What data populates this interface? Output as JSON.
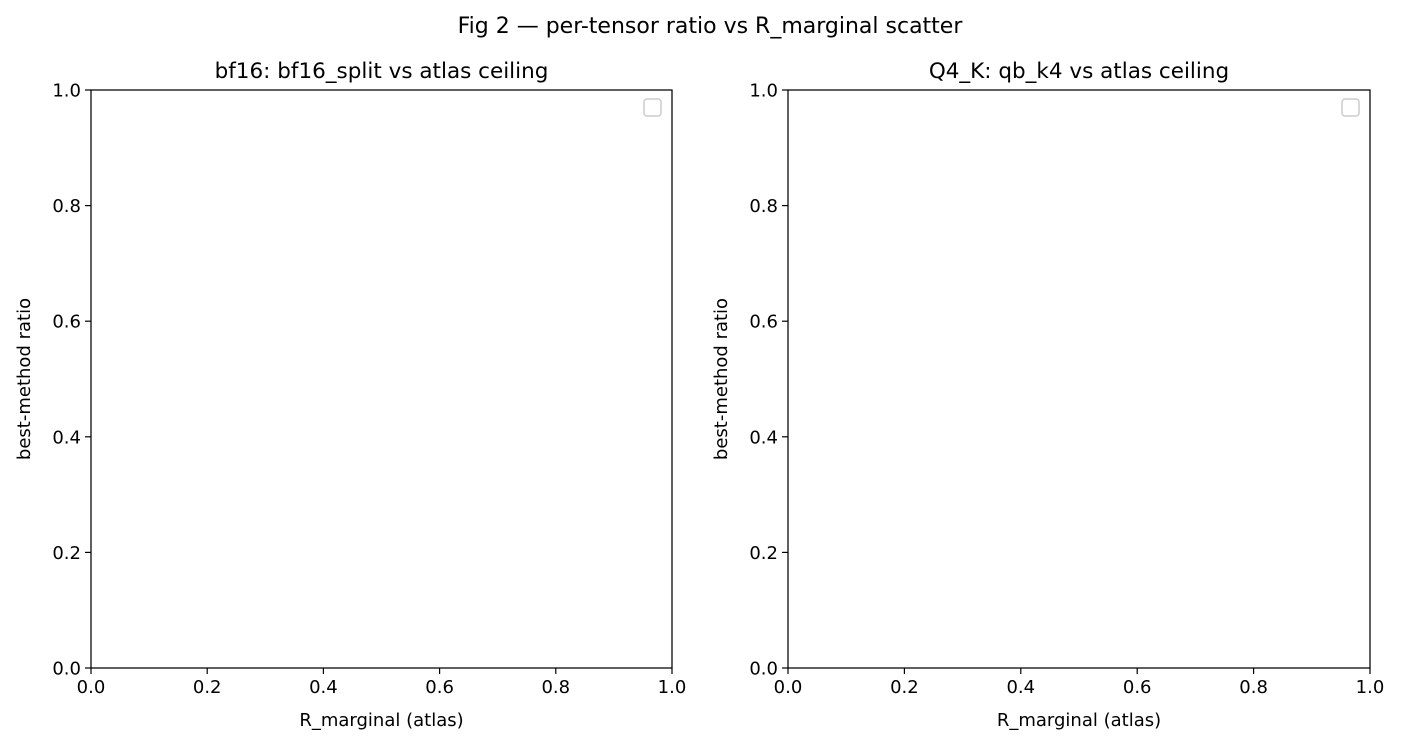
{
  "figure": {
    "suptitle": "Fig 2 — per-tensor ratio vs R_marginal scatter"
  },
  "chart_data": [
    {
      "type": "scatter",
      "title": "bf16: bf16_split vs atlas ceiling",
      "xlabel": "R_marginal (atlas)",
      "ylabel": "best-method ratio",
      "xlim": [
        0.0,
        1.0
      ],
      "ylim": [
        0.0,
        1.0
      ],
      "xticks": [
        "0.0",
        "0.2",
        "0.4",
        "0.6",
        "0.8",
        "1.0"
      ],
      "yticks": [
        "0.0",
        "0.2",
        "0.4",
        "0.6",
        "0.8",
        "1.0"
      ],
      "grid": false,
      "legend": {
        "placement": "upper right",
        "entries": []
      },
      "series": []
    },
    {
      "type": "scatter",
      "title": "Q4_K: qb_k4 vs atlas ceiling",
      "xlabel": "R_marginal (atlas)",
      "ylabel": "best-method ratio",
      "xlim": [
        0.0,
        1.0
      ],
      "ylim": [
        0.0,
        1.0
      ],
      "xticks": [
        "0.0",
        "0.2",
        "0.4",
        "0.6",
        "0.8",
        "1.0"
      ],
      "yticks": [
        "0.0",
        "0.2",
        "0.4",
        "0.6",
        "0.8",
        "1.0"
      ],
      "grid": false,
      "legend": {
        "placement": "upper right",
        "entries": []
      },
      "series": []
    }
  ]
}
